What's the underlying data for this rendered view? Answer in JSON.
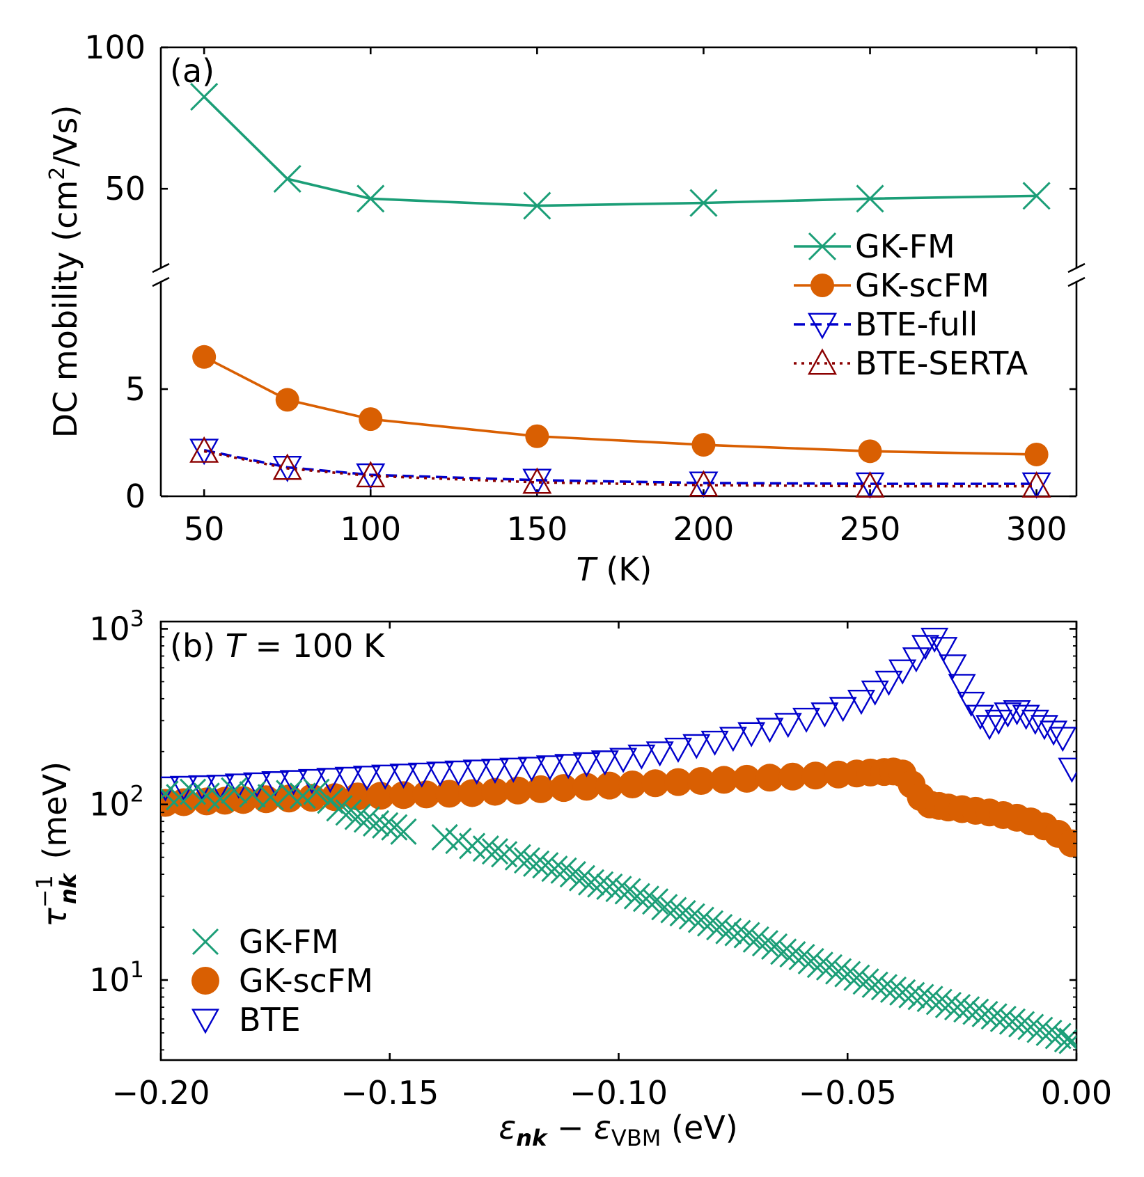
{
  "chart_data": [
    {
      "panel": "a",
      "type": "line",
      "panel_label": "(a)",
      "xlabel_italic": "T",
      "xlabel_unit": " (K)",
      "ylabel": "DC mobility (cm",
      "ylabel_sup": "2",
      "ylabel_tail": "/Vs)",
      "x": [
        50,
        75,
        100,
        150,
        200,
        250,
        300
      ],
      "xlim": [
        37,
        312
      ],
      "x_ticks": [
        50,
        100,
        150,
        200,
        250,
        300
      ],
      "x_tick_labels": [
        "50",
        "100",
        "150",
        "200",
        "250",
        "300"
      ],
      "broken_axis": true,
      "upper_ylim": [
        22,
        100
      ],
      "lower_ylim": [
        0,
        10
      ],
      "upper_y_ticks": [
        50,
        100
      ],
      "upper_y_tick_labels": [
        "50",
        "100"
      ],
      "lower_y_ticks": [
        0,
        5
      ],
      "lower_y_tick_labels": [
        "0",
        "5"
      ],
      "legend_position": "right",
      "series": [
        {
          "name": "GK-FM",
          "color": "#1b9e77",
          "marker": "x",
          "line": "solid",
          "values": [
            82.5,
            53.5,
            46.5,
            44.0,
            45.0,
            46.5,
            47.5
          ]
        },
        {
          "name": "GK-scFM",
          "color": "#d95f02",
          "marker": "circle",
          "line": "solid",
          "values": [
            6.5,
            4.5,
            3.6,
            2.8,
            2.4,
            2.1,
            1.95
          ]
        },
        {
          "name": "BTE-full",
          "color": "#0000cc",
          "marker": "triangle-down",
          "line": "dashed",
          "values": [
            2.15,
            1.35,
            1.0,
            0.75,
            0.62,
            0.58,
            0.58
          ]
        },
        {
          "name": "BTE-SERTA",
          "color": "#8b0000",
          "marker": "triangle-up",
          "line": "dotted",
          "values": [
            2.1,
            1.3,
            0.95,
            0.65,
            0.52,
            0.47,
            0.47
          ]
        }
      ]
    },
    {
      "panel": "b",
      "type": "scatter",
      "panel_label_prefix": "(b) ",
      "panel_label_italic": "T",
      "panel_label_suffix": " = 100 K",
      "xlabel_parts": {
        "e1": "ε",
        "s1": "nk",
        "mid": " − ",
        "e2": "ε",
        "s2": "VBM",
        "unit": " (eV)"
      },
      "ylabel_parts": {
        "tau": "τ",
        "sup": "−1",
        "sub": "nk",
        "unit": " (meV)"
      },
      "xlim": [
        -0.2,
        0.0
      ],
      "ylim": [
        3.5,
        1100
      ],
      "yscale": "log",
      "x_ticks": [
        -0.2,
        -0.15,
        -0.1,
        -0.05,
        0.0
      ],
      "x_tick_labels": [
        "−0.20",
        "−0.15",
        "−0.10",
        "−0.05",
        "0.00"
      ],
      "y_ticks": [
        10,
        100,
        1000
      ],
      "y_tick_base": "10",
      "y_tick_exponents": [
        "1",
        "2",
        "3"
      ],
      "legend_position": "bottom-left",
      "series": [
        {
          "name": "GK-FM",
          "color": "#1b9e77",
          "marker": "x",
          "x": [
            -0.199,
            -0.196,
            -0.193,
            -0.19,
            -0.187,
            -0.184,
            -0.18,
            -0.176,
            -0.172,
            -0.169,
            -0.166,
            -0.163,
            -0.161,
            -0.159,
            -0.157,
            -0.155,
            -0.153,
            -0.151,
            -0.149,
            -0.147,
            -0.138,
            -0.135,
            -0.132,
            -0.129,
            -0.127,
            -0.125,
            -0.122,
            -0.12,
            -0.118,
            -0.116,
            -0.114,
            -0.112,
            -0.11,
            -0.108,
            -0.106,
            -0.104,
            -0.102,
            -0.1,
            -0.098,
            -0.096,
            -0.094,
            -0.092,
            -0.09,
            -0.088,
            -0.086,
            -0.084,
            -0.082,
            -0.08,
            -0.078,
            -0.076,
            -0.074,
            -0.072,
            -0.07,
            -0.068,
            -0.066,
            -0.064,
            -0.062,
            -0.06,
            -0.058,
            -0.056,
            -0.054,
            -0.052,
            -0.05,
            -0.048,
            -0.046,
            -0.044,
            -0.042,
            -0.04,
            -0.038,
            -0.036,
            -0.034,
            -0.032,
            -0.03,
            -0.028,
            -0.026,
            -0.024,
            -0.022,
            -0.02,
            -0.018,
            -0.016,
            -0.014,
            -0.012,
            -0.01,
            -0.008,
            -0.006,
            -0.004,
            -0.002,
            -0.001
          ],
          "y": [
            115,
            110,
            118,
            112,
            108,
            120,
            114,
            110,
            116,
            112,
            118,
            105,
            95,
            90,
            85,
            82,
            78,
            76,
            74,
            70,
            65,
            62,
            58,
            56,
            54,
            52,
            50,
            48,
            46,
            45,
            43,
            42,
            40,
            38,
            36,
            35,
            34,
            33,
            32,
            30,
            29,
            28,
            26,
            25,
            24,
            23,
            22,
            21,
            20,
            19,
            18.5,
            18,
            17,
            16.2,
            15.5,
            14.5,
            14,
            13.5,
            12.8,
            12.2,
            11.8,
            11.2,
            10.8,
            10.3,
            9.8,
            9.4,
            9.1,
            8.8,
            8.5,
            8.2,
            8,
            7.8,
            7.5,
            7.2,
            7,
            6.8,
            6.6,
            6.4,
            6.2,
            6,
            5.8,
            5.6,
            5.4,
            5.2,
            5,
            4.8,
            4.6,
            4.5
          ]
        },
        {
          "name": "GK-scFM",
          "color": "#d95f02",
          "marker": "circle",
          "x": [
            -0.199,
            -0.195,
            -0.19,
            -0.186,
            -0.182,
            -0.177,
            -0.172,
            -0.167,
            -0.162,
            -0.157,
            -0.152,
            -0.147,
            -0.142,
            -0.137,
            -0.132,
            -0.127,
            -0.122,
            -0.117,
            -0.112,
            -0.107,
            -0.102,
            -0.097,
            -0.092,
            -0.087,
            -0.082,
            -0.077,
            -0.072,
            -0.067,
            -0.062,
            -0.057,
            -0.052,
            -0.048,
            -0.045,
            -0.042,
            -0.04,
            -0.038,
            -0.036,
            -0.034,
            -0.032,
            -0.03,
            -0.028,
            -0.025,
            -0.022,
            -0.019,
            -0.016,
            -0.013,
            -0.01,
            -0.007,
            -0.004,
            -0.001
          ],
          "y": [
            102,
            103,
            104,
            105,
            106,
            107,
            108,
            109,
            110,
            111,
            112,
            113,
            114,
            115,
            116,
            118,
            120,
            122,
            124,
            126,
            128,
            130,
            132,
            134,
            136,
            138,
            140,
            142,
            144,
            146,
            148,
            150,
            152,
            153,
            154,
            150,
            130,
            110,
            100,
            98,
            96,
            94,
            92,
            90,
            87,
            84,
            80,
            75,
            68,
            60
          ]
        },
        {
          "name": "BTE",
          "color": "#0000cc",
          "marker": "triangle-down",
          "x": [
            -0.199,
            -0.195,
            -0.191,
            -0.187,
            -0.183,
            -0.179,
            -0.175,
            -0.171,
            -0.167,
            -0.163,
            -0.159,
            -0.155,
            -0.151,
            -0.147,
            -0.143,
            -0.139,
            -0.135,
            -0.131,
            -0.127,
            -0.123,
            -0.119,
            -0.115,
            -0.111,
            -0.107,
            -0.103,
            -0.099,
            -0.095,
            -0.091,
            -0.087,
            -0.083,
            -0.079,
            -0.075,
            -0.071,
            -0.067,
            -0.063,
            -0.059,
            -0.055,
            -0.051,
            -0.047,
            -0.044,
            -0.041,
            -0.038,
            -0.035,
            -0.033,
            -0.031,
            -0.029,
            -0.027,
            -0.025,
            -0.023,
            -0.021,
            -0.019,
            -0.017,
            -0.015,
            -0.013,
            -0.011,
            -0.009,
            -0.007,
            -0.005,
            -0.003,
            -0.001
          ],
          "y": [
            125,
            126,
            127,
            128,
            130,
            132,
            134,
            136,
            138,
            140,
            142,
            144,
            146,
            148,
            150,
            152,
            154,
            156,
            158,
            160,
            162,
            165,
            168,
            172,
            176,
            182,
            190,
            198,
            208,
            218,
            228,
            240,
            255,
            270,
            288,
            308,
            330,
            355,
            390,
            440,
            500,
            580,
            680,
            800,
            880,
            780,
            620,
            480,
            380,
            320,
            280,
            300,
            330,
            340,
            320,
            300,
            280,
            260,
            240,
            160
          ]
        }
      ]
    }
  ]
}
